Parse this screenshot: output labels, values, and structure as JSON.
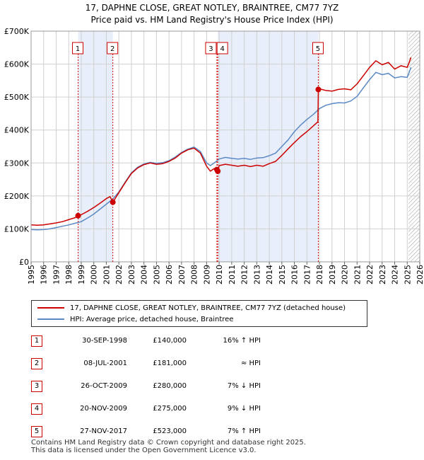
{
  "title_line1": "17, DAPHNE CLOSE, GREAT NOTLEY, BRAINTREE, CM77 7YZ",
  "title_line2": "Price paid vs. HM Land Registry's House Price Index (HPI)",
  "colors": {
    "price_paid": "#cc0000",
    "hpi": "#5b8ac6",
    "shade": "#e8eefa",
    "grid": "#d0d0d0"
  },
  "legend": {
    "price_paid_label": "17, DAPHNE CLOSE, GREAT NOTLEY, BRAINTREE, CM77 7YZ (detached house)",
    "hpi_label": "HPI: Average price, detached house, Braintree"
  },
  "sales": [
    {
      "num": "1",
      "date": "30-SEP-1998",
      "price": "£140,000",
      "hpi": "16% ↑ HPI"
    },
    {
      "num": "2",
      "date": "08-JUL-2001",
      "price": "£181,000",
      "hpi": "≈ HPI"
    },
    {
      "num": "3",
      "date": "26-OCT-2009",
      "price": "£280,000",
      "hpi": "7% ↓ HPI"
    },
    {
      "num": "4",
      "date": "20-NOV-2009",
      "price": "£275,000",
      "hpi": "9% ↓ HPI"
    },
    {
      "num": "5",
      "date": "27-NOV-2017",
      "price": "£523,000",
      "hpi": "7% ↑ HPI"
    }
  ],
  "footer_line1": "Contains HM Land Registry data © Crown copyright and database right 2025.",
  "footer_line2": "This data is licensed under the Open Government Licence v3.0.",
  "chart_data": {
    "type": "line",
    "title": "17, DAPHNE CLOSE, GREAT NOTLEY, BRAINTREE, CM77 7YZ",
    "subtitle": "Price paid vs. HM Land Registry's House Price Index (HPI)",
    "xlim": [
      1995,
      2026
    ],
    "ylim": [
      0,
      700000
    ],
    "x_ticks": [
      1995,
      1996,
      1997,
      1998,
      1999,
      2000,
      2001,
      2002,
      2003,
      2004,
      2005,
      2006,
      2007,
      2008,
      2009,
      2010,
      2011,
      2012,
      2013,
      2014,
      2015,
      2016,
      2017,
      2018,
      2019,
      2020,
      2021,
      2022,
      2023,
      2024,
      2025,
      2026
    ],
    "y_ticks": [
      0,
      100000,
      200000,
      300000,
      400000,
      500000,
      600000,
      700000
    ],
    "y_tick_labels": [
      "£0",
      "£100K",
      "£200K",
      "£300K",
      "£400K",
      "£500K",
      "£600K",
      "£700K"
    ],
    "grid": true,
    "legend_position": "below",
    "shaded_periods": [
      [
        1998.75,
        2001.52
      ],
      [
        2009.89,
        2017.91
      ]
    ],
    "future_hatch_from": 2025.1,
    "sale_markers": [
      {
        "label": "1",
        "x": 1998.75,
        "y": 140000
      },
      {
        "label": "2",
        "x": 2001.52,
        "y": 181000
      },
      {
        "label": "3",
        "x": 2009.82,
        "y": 280000
      },
      {
        "label": "4",
        "x": 2009.89,
        "y": 275000
      },
      {
        "label": "5",
        "x": 2017.91,
        "y": 523000
      }
    ],
    "series": [
      {
        "name": "17, DAPHNE CLOSE, GREAT NOTLEY, BRAINTREE, CM77 7YZ (detached house)",
        "x": [
          1995,
          1995.5,
          1996,
          1996.5,
          1997,
          1997.5,
          1998,
          1998.5,
          1998.75,
          1999,
          1999.5,
          2000,
          2000.5,
          2001,
          2001.3,
          2001.52,
          2002,
          2002.5,
          2003,
          2003.5,
          2004,
          2004.5,
          2005,
          2005.5,
          2006,
          2006.5,
          2007,
          2007.5,
          2008,
          2008.5,
          2009,
          2009.3,
          2009.6,
          2009.82,
          2009.89,
          2010,
          2010.5,
          2011,
          2011.5,
          2012,
          2012.5,
          2013,
          2013.5,
          2014,
          2014.5,
          2015,
          2015.5,
          2016,
          2016.5,
          2017,
          2017.5,
          2017.88,
          2017.91,
          2018,
          2018.5,
          2019,
          2019.5,
          2020,
          2020.5,
          2021,
          2021.5,
          2022,
          2022.5,
          2023,
          2023.5,
          2024,
          2024.5,
          2025,
          2025.3
        ],
        "y": [
          112000,
          111000,
          112000,
          115000,
          118000,
          122000,
          128000,
          134000,
          140000,
          143000,
          153000,
          165000,
          178000,
          192000,
          198000,
          181000,
          210000,
          240000,
          268000,
          285000,
          295000,
          300000,
          296000,
          298000,
          305000,
          315000,
          330000,
          340000,
          345000,
          330000,
          290000,
          275000,
          283000,
          280000,
          275000,
          292000,
          296000,
          293000,
          290000,
          293000,
          289000,
          293000,
          290000,
          298000,
          305000,
          323000,
          343000,
          362000,
          380000,
          395000,
          412000,
          425000,
          523000,
          525000,
          520000,
          518000,
          523000,
          525000,
          522000,
          540000,
          565000,
          590000,
          610000,
          598000,
          605000,
          585000,
          595000,
          590000,
          620000
        ]
      },
      {
        "name": "HPI: Average price, detached house, Braintree",
        "x": [
          1995,
          1995.5,
          1996,
          1996.5,
          1997,
          1997.5,
          1998,
          1998.5,
          1999,
          1999.5,
          2000,
          2000.5,
          2001,
          2001.5,
          2002,
          2002.5,
          2003,
          2003.5,
          2004,
          2004.5,
          2005,
          2005.5,
          2006,
          2006.5,
          2007,
          2007.5,
          2008,
          2008.5,
          2009,
          2009.3,
          2009.6,
          2010,
          2010.5,
          2011,
          2011.5,
          2012,
          2012.5,
          2013,
          2013.5,
          2014,
          2014.5,
          2015,
          2015.5,
          2016,
          2016.5,
          2017,
          2017.5,
          2018,
          2018.5,
          2019,
          2019.5,
          2020,
          2020.5,
          2021,
          2021.5,
          2022,
          2022.5,
          2023,
          2023.5,
          2024,
          2024.5,
          2025,
          2025.3
        ],
        "y": [
          98000,
          97000,
          98000,
          100000,
          104000,
          108000,
          112000,
          117000,
          122000,
          133000,
          145000,
          160000,
          175000,
          190000,
          212000,
          242000,
          270000,
          287000,
          297000,
          302000,
          299000,
          301000,
          307000,
          318000,
          332000,
          342000,
          348000,
          335000,
          300000,
          292000,
          300000,
          312000,
          317000,
          314000,
          312000,
          314000,
          311000,
          315000,
          316000,
          322000,
          330000,
          350000,
          370000,
          395000,
          415000,
          432000,
          447000,
          465000,
          475000,
          480000,
          483000,
          482000,
          488000,
          502000,
          528000,
          553000,
          575000,
          568000,
          572000,
          558000,
          562000,
          560000,
          590000
        ]
      }
    ]
  }
}
